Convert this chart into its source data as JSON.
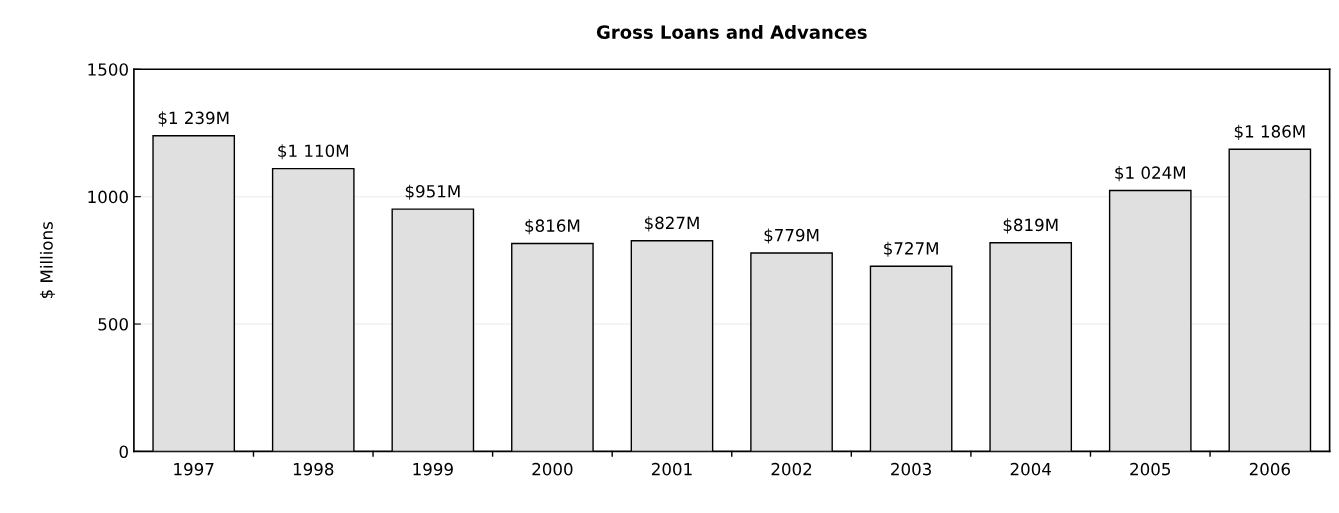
{
  "chart_data": {
    "type": "bar",
    "title": "Gross Loans and Advances",
    "ylabel": "$ Millions",
    "categories": [
      "1997",
      "1998",
      "1999",
      "2000",
      "2001",
      "2002",
      "2003",
      "2004",
      "2005",
      "2006"
    ],
    "values": [
      1239,
      1110,
      951,
      816,
      827,
      779,
      727,
      819,
      1024,
      1186
    ],
    "value_labels": [
      "$1 239M",
      "$1 110M",
      "$951M",
      "$816M",
      "$827M",
      "$779M",
      "$727M",
      "$819M",
      "$1 024M",
      "$1 186M"
    ],
    "color": "#e0e0e0",
    "ylim": [
      0,
      1500
    ],
    "yticks": [
      0,
      500,
      1000,
      1500
    ],
    "grid": "y",
    "legend": false
  }
}
